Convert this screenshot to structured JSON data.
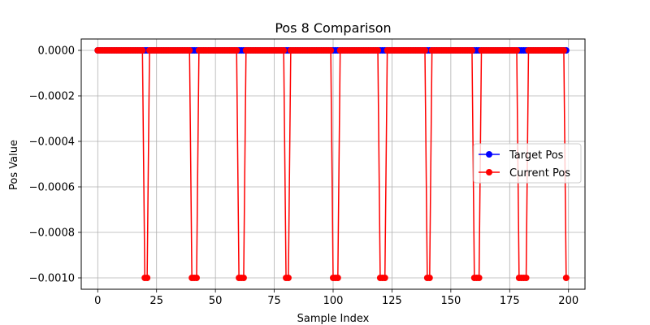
{
  "chart_data": {
    "type": "line",
    "title": "Pos 8 Comparison",
    "xlabel": "Sample Index",
    "ylabel": "Pos Value",
    "xlim": [
      -7,
      207
    ],
    "ylim": [
      -0.00105,
      5e-05
    ],
    "x_ticks": [
      0,
      25,
      50,
      75,
      100,
      125,
      150,
      175,
      200
    ],
    "y_ticks": [
      0.0,
      -0.0002,
      -0.0004,
      -0.0006,
      -0.0008,
      -0.001
    ],
    "y_tick_labels": [
      "0.0000",
      "−0.0002",
      "−0.0004",
      "−0.0006",
      "−0.0008",
      "−0.0010"
    ],
    "grid": true,
    "legend_position": "right",
    "x": {
      "start": 0,
      "end": 199,
      "step": 1
    },
    "series": [
      {
        "name": "Target Pos",
        "color": "#0000ff",
        "marker": "circle",
        "values_rule": "all zero",
        "value": 0.0
      },
      {
        "name": "Current Pos",
        "color": "#ff0000",
        "marker": "circle",
        "base_value": 0.0,
        "dip_value": -0.001,
        "dip_indices": [
          20,
          21,
          40,
          41,
          42,
          60,
          61,
          62,
          80,
          81,
          100,
          101,
          102,
          120,
          121,
          122,
          140,
          141,
          160,
          161,
          162,
          179,
          180,
          181,
          182,
          199
        ]
      }
    ]
  }
}
